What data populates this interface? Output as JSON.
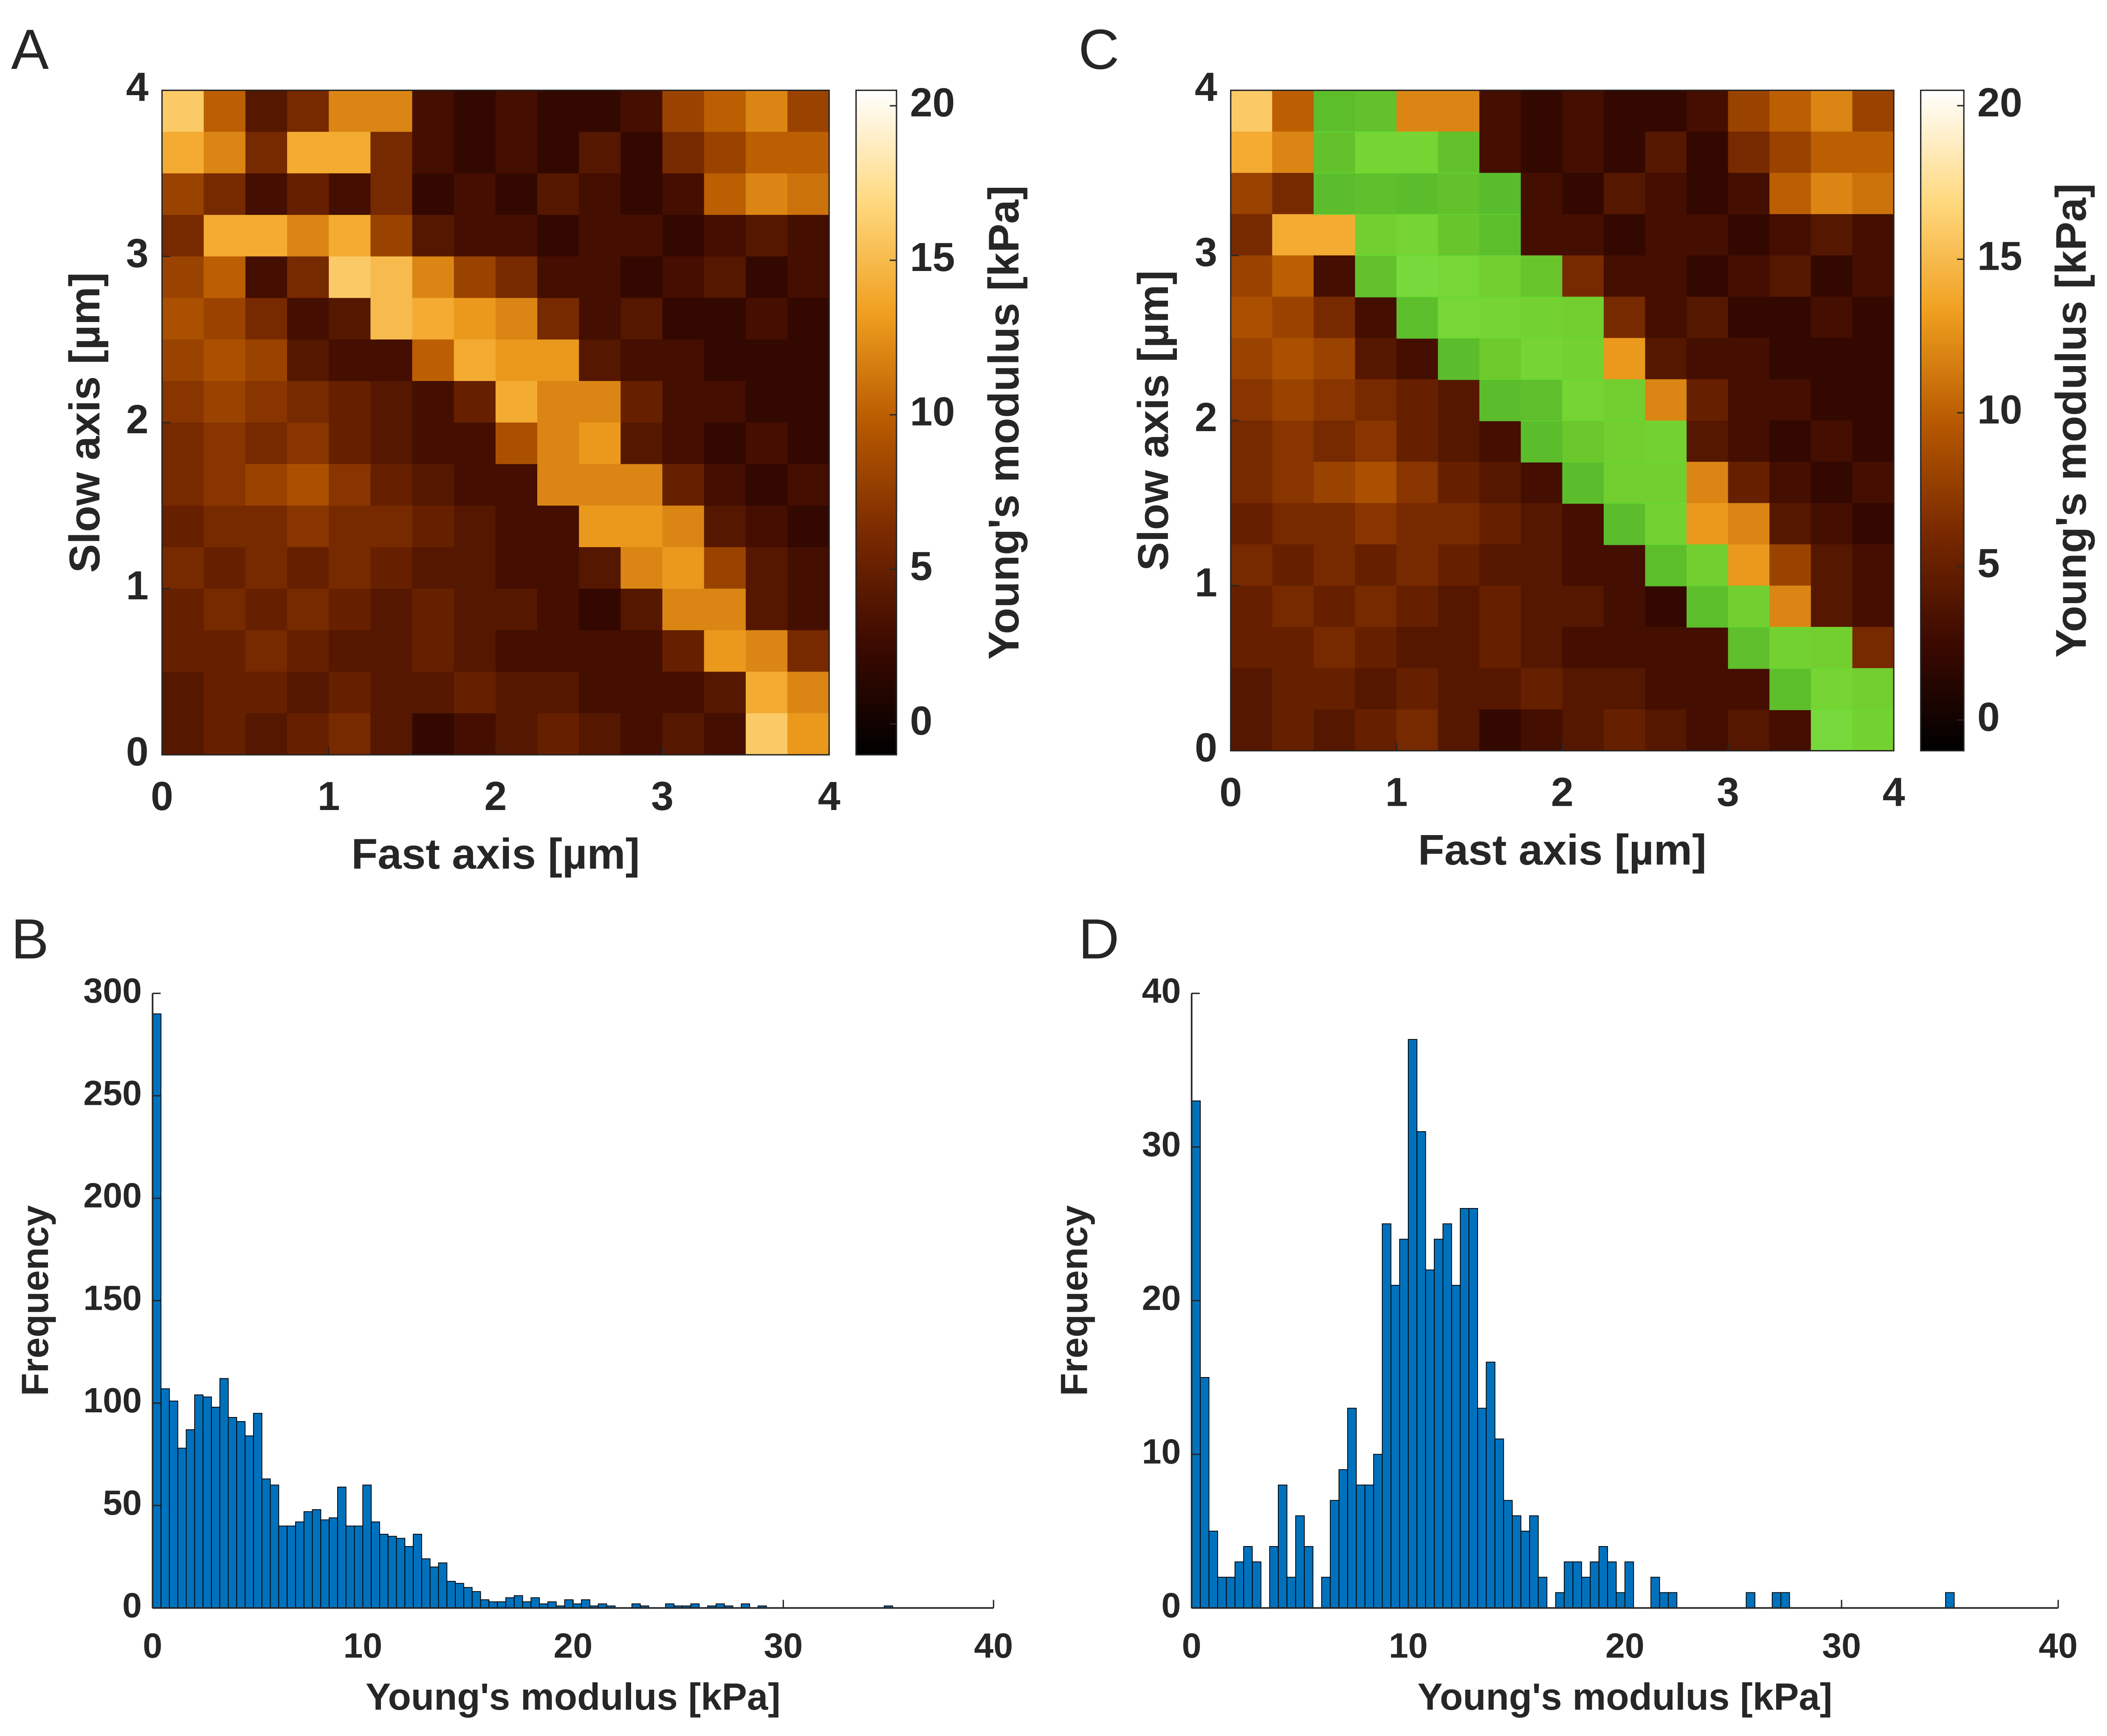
{
  "chart_data": [
    {
      "type": "heatmap",
      "panel_label": "A",
      "xlabel": "Fast axis [µm]",
      "ylabel": "Slow axis [µm]",
      "xlim": [
        0,
        4
      ],
      "ylim": [
        0,
        4
      ],
      "xticks": [
        0,
        1,
        2,
        3,
        4
      ],
      "yticks": [
        0,
        1,
        2,
        3,
        4
      ],
      "z": [
        [
          16,
          10,
          4,
          6,
          12,
          12,
          3,
          2,
          3,
          2,
          2,
          3,
          8,
          10,
          12,
          8
        ],
        [
          14,
          12,
          6,
          14,
          14,
          6,
          3,
          2,
          3,
          2,
          4,
          2,
          6,
          8,
          10,
          10
        ],
        [
          8,
          6,
          3,
          5,
          3,
          6,
          2,
          3,
          2,
          4,
          3,
          2,
          3,
          10,
          12,
          11
        ],
        [
          6,
          14,
          14,
          12,
          14,
          8,
          4,
          3,
          3,
          2,
          3,
          3,
          2,
          3,
          4,
          3
        ],
        [
          8,
          10,
          3,
          6,
          16,
          15,
          12,
          8,
          6,
          3,
          3,
          2,
          3,
          4,
          2,
          3
        ],
        [
          9,
          8,
          6,
          3,
          4,
          15,
          14,
          13,
          12,
          6,
          3,
          4,
          2,
          2,
          3,
          2
        ],
        [
          8,
          9,
          8,
          4,
          3,
          3,
          10,
          14,
          13,
          13,
          4,
          3,
          3,
          2,
          2,
          2
        ],
        [
          7,
          8,
          7,
          6,
          5,
          4,
          3,
          5,
          14,
          12,
          12,
          5,
          3,
          3,
          2,
          2
        ],
        [
          6,
          7,
          6,
          7,
          5,
          4,
          3,
          3,
          9,
          12,
          13,
          4,
          3,
          2,
          3,
          2
        ],
        [
          6,
          7,
          8,
          9,
          7,
          5,
          4,
          3,
          3,
          12,
          12,
          12,
          5,
          3,
          2,
          3
        ],
        [
          5,
          6,
          6,
          7,
          6,
          6,
          5,
          4,
          3,
          3,
          13,
          13,
          12,
          4,
          3,
          2
        ],
        [
          6,
          5,
          6,
          5,
          6,
          5,
          4,
          4,
          3,
          3,
          4,
          12,
          13,
          8,
          4,
          3
        ],
        [
          5,
          6,
          5,
          6,
          5,
          4,
          5,
          4,
          4,
          3,
          2,
          4,
          12,
          12,
          4,
          3
        ],
        [
          5,
          5,
          6,
          5,
          4,
          4,
          5,
          4,
          3,
          3,
          3,
          3,
          5,
          13,
          12,
          6
        ],
        [
          4,
          5,
          5,
          4,
          5,
          4,
          4,
          5,
          4,
          4,
          3,
          3,
          3,
          4,
          14,
          12
        ],
        [
          4,
          5,
          4,
          5,
          6,
          4,
          2,
          3,
          4,
          5,
          4,
          3,
          4,
          3,
          16,
          13
        ]
      ],
      "colorbar": {
        "label": "Young's modulus [kPa]",
        "clim": [
          -1,
          20.5
        ],
        "ticks": [
          0,
          5,
          10,
          15,
          20
        ],
        "colormap": [
          "#000000",
          "#3d0a00",
          "#7a2a00",
          "#b85a00",
          "#f0a020",
          "#ffd980",
          "#ffffff"
        ]
      }
    },
    {
      "type": "histogram",
      "panel_label": "B",
      "xlabel": "Young's modulus [kPa]",
      "ylabel": "Frequency",
      "color": "#0072bd",
      "xlim": [
        0,
        40
      ],
      "ylim": [
        0,
        300
      ],
      "xticks": [
        0,
        10,
        20,
        30,
        40
      ],
      "yticks": [
        0,
        50,
        100,
        150,
        200,
        250,
        300
      ],
      "bins": [
        0,
        0.4,
        0.8,
        1.2,
        1.6,
        2,
        2.4,
        2.8,
        3.2,
        3.6,
        4,
        4.4,
        4.8,
        5.2,
        5.6,
        6,
        6.4,
        6.8,
        7.2,
        7.6,
        8,
        8.4,
        8.8,
        9.2,
        9.6,
        10,
        10.4,
        10.8,
        11.2,
        11.6,
        12,
        12.4,
        12.8,
        13.2,
        13.6,
        14,
        14.4,
        14.8,
        15.2,
        15.6,
        16,
        16.4,
        16.8,
        17.2,
        17.6,
        18,
        18.4,
        18.8,
        19.2,
        19.6,
        20,
        20.4,
        20.8,
        21.2,
        21.6,
        22,
        22.4,
        22.8,
        23.2,
        23.6,
        24,
        24.4,
        24.8,
        25.2,
        25.6,
        26,
        26.4,
        26.8,
        27.2,
        27.6,
        28,
        28.4,
        28.8,
        29.2,
        29.6,
        30,
        30.4,
        30.8,
        31.2,
        31.6,
        32,
        32.4,
        32.8,
        33.2,
        33.6,
        34,
        34.4,
        34.8,
        35.2
      ],
      "values": [
        290,
        107,
        101,
        78,
        87,
        104,
        103,
        98,
        112,
        93,
        91,
        84,
        95,
        63,
        60,
        40,
        40,
        42,
        47,
        48,
        43,
        44,
        59,
        40,
        40,
        60,
        42,
        36,
        35,
        34,
        30,
        36,
        24,
        20,
        22,
        13,
        12,
        10,
        8,
        4,
        3,
        3,
        5,
        6,
        3,
        5,
        2,
        3,
        1,
        4,
        2,
        4,
        1,
        2,
        1,
        0,
        0,
        2,
        1,
        0,
        0,
        2,
        1,
        1,
        2,
        0,
        1,
        2,
        1,
        0,
        2,
        0,
        1,
        0,
        0,
        0,
        0,
        0,
        0,
        0,
        0,
        0,
        0,
        0,
        0,
        0,
        0,
        1
      ]
    },
    {
      "type": "heatmap",
      "panel_label": "C",
      "xlabel": "Fast axis [µm]",
      "ylabel": "Slow axis [µm]",
      "xlim": [
        0,
        4
      ],
      "ylim": [
        0,
        4
      ],
      "xticks": [
        0,
        1,
        2,
        3,
        4
      ],
      "yticks": [
        0,
        1,
        2,
        3,
        4
      ],
      "z": [
        [
          16,
          10,
          4,
          6,
          12,
          12,
          3,
          2,
          3,
          2,
          2,
          3,
          8,
          10,
          12,
          8
        ],
        [
          14,
          12,
          6,
          14,
          14,
          6,
          3,
          2,
          3,
          2,
          4,
          2,
          6,
          8,
          10,
          10
        ],
        [
          8,
          6,
          3,
          5,
          3,
          6,
          2,
          3,
          2,
          4,
          3,
          2,
          3,
          10,
          12,
          11
        ],
        [
          6,
          14,
          14,
          12,
          14,
          8,
          4,
          3,
          3,
          2,
          3,
          3,
          2,
          3,
          4,
          3
        ],
        [
          8,
          10,
          3,
          6,
          16,
          15,
          12,
          8,
          6,
          3,
          3,
          2,
          3,
          4,
          2,
          3
        ],
        [
          9,
          8,
          6,
          3,
          4,
          15,
          14,
          13,
          12,
          6,
          3,
          4,
          2,
          2,
          3,
          2
        ],
        [
          8,
          9,
          8,
          4,
          3,
          3,
          10,
          14,
          13,
          13,
          4,
          3,
          3,
          2,
          2,
          2
        ],
        [
          7,
          8,
          7,
          6,
          5,
          4,
          3,
          5,
          14,
          12,
          12,
          5,
          3,
          3,
          2,
          2
        ],
        [
          6,
          7,
          6,
          7,
          5,
          4,
          3,
          3,
          9,
          12,
          13,
          4,
          3,
          2,
          3,
          2
        ],
        [
          6,
          7,
          8,
          9,
          7,
          5,
          4,
          3,
          3,
          12,
          12,
          12,
          5,
          3,
          2,
          3
        ],
        [
          5,
          6,
          6,
          7,
          6,
          6,
          5,
          4,
          3,
          3,
          13,
          13,
          12,
          4,
          3,
          2
        ],
        [
          6,
          5,
          6,
          5,
          6,
          5,
          4,
          4,
          3,
          3,
          4,
          12,
          13,
          8,
          4,
          3
        ],
        [
          5,
          6,
          5,
          6,
          5,
          4,
          5,
          4,
          4,
          3,
          2,
          4,
          12,
          12,
          4,
          3
        ],
        [
          5,
          5,
          6,
          5,
          4,
          4,
          5,
          4,
          3,
          3,
          3,
          3,
          5,
          13,
          12,
          6
        ],
        [
          4,
          5,
          5,
          4,
          5,
          4,
          4,
          5,
          4,
          4,
          3,
          3,
          3,
          4,
          14,
          12
        ],
        [
          4,
          5,
          4,
          5,
          6,
          4,
          2,
          3,
          4,
          5,
          4,
          3,
          4,
          3,
          16,
          13
        ]
      ],
      "highlight": {
        "color": "#5fdc34",
        "x_ranges": [
          [
            0.5,
            1
          ],
          [
            0.5,
            1.5
          ],
          [
            0.5,
            1.75
          ],
          [
            0.75,
            1.75
          ],
          [
            0.75,
            2
          ],
          [
            1,
            2.25
          ],
          [
            1.25,
            2.25
          ],
          [
            1.5,
            2.5
          ],
          [
            1.75,
            2.75
          ],
          [
            2,
            2.75
          ],
          [
            2.25,
            2.75
          ],
          [
            2.5,
            3
          ],
          [
            2.75,
            3.25
          ],
          [
            3,
            3.75
          ],
          [
            3.25,
            4
          ],
          [
            3.5,
            4
          ]
        ]
      },
      "colorbar": {
        "label": "Young's modulus [kPa]",
        "clim": [
          -1,
          20.5
        ],
        "ticks": [
          0,
          5,
          10,
          15,
          20
        ],
        "colormap": [
          "#000000",
          "#3d0a00",
          "#7a2a00",
          "#b85a00",
          "#f0a020",
          "#ffd980",
          "#ffffff"
        ]
      }
    },
    {
      "type": "histogram",
      "panel_label": "D",
      "xlabel": "Young's modulus [kPa]",
      "ylabel": "Frequency",
      "color": "#0072bd",
      "xlim": [
        0,
        40
      ],
      "ylim": [
        0,
        40
      ],
      "xticks": [
        0,
        10,
        20,
        30,
        40
      ],
      "yticks": [
        0,
        10,
        20,
        30,
        40
      ],
      "bins": [
        0,
        0.4,
        0.8,
        1.2,
        1.6,
        2,
        2.4,
        2.8,
        3.2,
        3.6,
        4,
        4.4,
        4.8,
        5.2,
        5.6,
        6,
        6.4,
        6.8,
        7.2,
        7.6,
        8,
        8.4,
        8.8,
        9.2,
        9.6,
        10,
        10.4,
        10.8,
        11.2,
        11.6,
        12,
        12.4,
        12.8,
        13.2,
        13.6,
        14,
        14.4,
        14.8,
        15.2,
        15.6,
        16,
        16.4,
        16.8,
        17.2,
        17.6,
        18,
        18.4,
        18.8,
        19.2,
        19.6,
        20,
        20.4,
        20.8,
        21.2,
        21.6,
        22,
        22.4,
        22.8,
        23.2,
        23.6,
        24,
        24.4,
        24.8,
        25.2,
        25.6,
        26,
        26.4,
        26.8,
        27.2,
        27.6,
        28,
        28.4,
        28.8,
        29.2,
        29.6,
        30,
        30.4,
        30.8,
        31.2,
        31.6,
        32,
        32.4,
        32.8,
        33.2,
        33.6,
        34,
        34.4,
        34.8,
        35.2
      ],
      "values": [
        33,
        15,
        5,
        2,
        2,
        3,
        4,
        3,
        0,
        4,
        8,
        2,
        6,
        4,
        0,
        2,
        7,
        9,
        13,
        8,
        8,
        10,
        25,
        21,
        24,
        37,
        31,
        22,
        24,
        25,
        21,
        26,
        26,
        13,
        16,
        11,
        7,
        6,
        5,
        6,
        2,
        0,
        1,
        3,
        3,
        2,
        3,
        4,
        3,
        1,
        3,
        0,
        0,
        2,
        1,
        1,
        0,
        0,
        0,
        0,
        0,
        0,
        0,
        0,
        1,
        0,
        0,
        1,
        1,
        0,
        0,
        0,
        0,
        0,
        0,
        0,
        0,
        0,
        0,
        0,
        0,
        0,
        0,
        0,
        0,
        0,
        0,
        1
      ]
    }
  ]
}
